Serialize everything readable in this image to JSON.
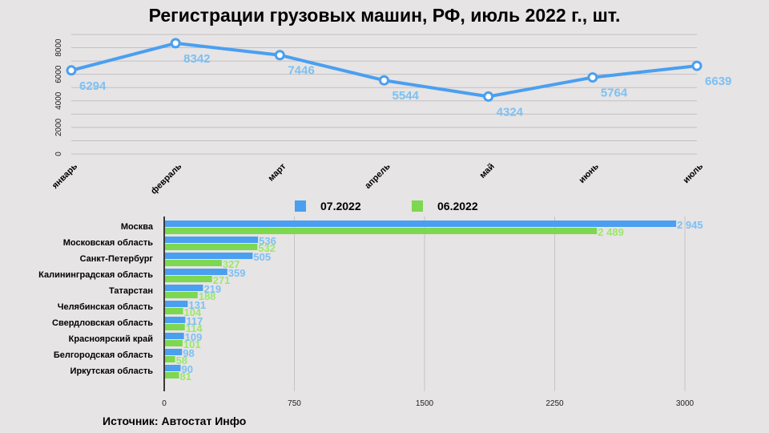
{
  "title": "Регистрации грузовых машин, РФ, июль 2022 г., шт.",
  "source": "Источник: Автостат Инфо",
  "chart_data": [
    {
      "type": "line",
      "categories": [
        "январь",
        "февраль",
        "март",
        "апрель",
        "май",
        "июнь",
        "июль"
      ],
      "values": [
        6294,
        8342,
        7446,
        5544,
        4324,
        5764,
        6639
      ],
      "value_labels": [
        "6294",
        "8342",
        "7446",
        "5544",
        "4324",
        "5764",
        "6639"
      ],
      "yticks": [
        "0",
        "2000",
        "4000",
        "6000",
        "8000"
      ],
      "ylim": [
        0,
        9000
      ],
      "grid": true,
      "color": "#4a9ff0",
      "label_color": "#7cc0f5"
    },
    {
      "type": "bar",
      "orientation": "horizontal",
      "categories": [
        "Москва",
        "Московская область",
        "Санкт-Петербург",
        "Калининградская область",
        "Татарстан",
        "Челябинская область",
        "Свердловская область",
        "Красноярский край",
        "Белгородская область",
        "Иркутская область"
      ],
      "series": [
        {
          "name": "07.2022",
          "values": [
            2945,
            536,
            505,
            359,
            219,
            131,
            117,
            109,
            98,
            90
          ],
          "labels": [
            "2 945",
            "536",
            "505",
            "359",
            "219",
            "131",
            "117",
            "109",
            "98",
            "90"
          ],
          "color": "#4a9ff0",
          "label_color": "#7cc0f5"
        },
        {
          "name": "06.2022",
          "values": [
            2489,
            532,
            327,
            271,
            188,
            104,
            114,
            101,
            58,
            81
          ],
          "labels": [
            "2 489",
            "532",
            "327",
            "271",
            "188",
            "104",
            "114",
            "101",
            "58",
            "81"
          ],
          "color": "#7ed750",
          "label_color": "#9be86a"
        }
      ],
      "xticks": [
        "0",
        "750",
        "1500",
        "2250",
        "3000"
      ],
      "xlim": [
        0,
        3000
      ],
      "legend": "top"
    }
  ]
}
